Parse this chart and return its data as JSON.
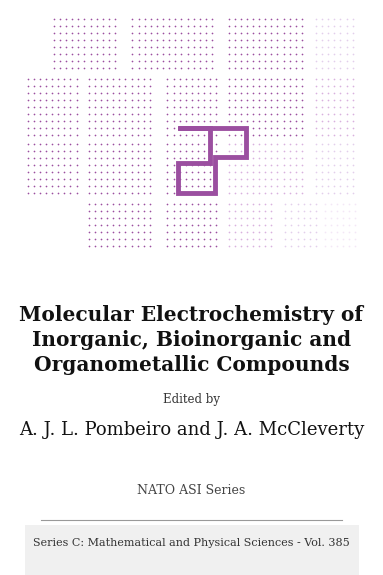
{
  "title_line1": "Molecular Electrochemistry of",
  "title_line2": "Inorganic, Bioinorganic and",
  "title_line3": "Organometallic Compounds",
  "edited_by": "Edited by",
  "authors": "A. J. L. Pombeiro and J. A. McCleverty",
  "series_name": "NATO ASI Series",
  "series_detail": "Series C: Mathematical and Physical Sciences - Vol. 385",
  "bg_color": "#ffffff",
  "purple_dark": "#9b4fa0",
  "purple_light": "#c990d0",
  "purple_very_light": "#dab8e0",
  "figsize": [
    3.83,
    5.75
  ],
  "dpi": 100
}
